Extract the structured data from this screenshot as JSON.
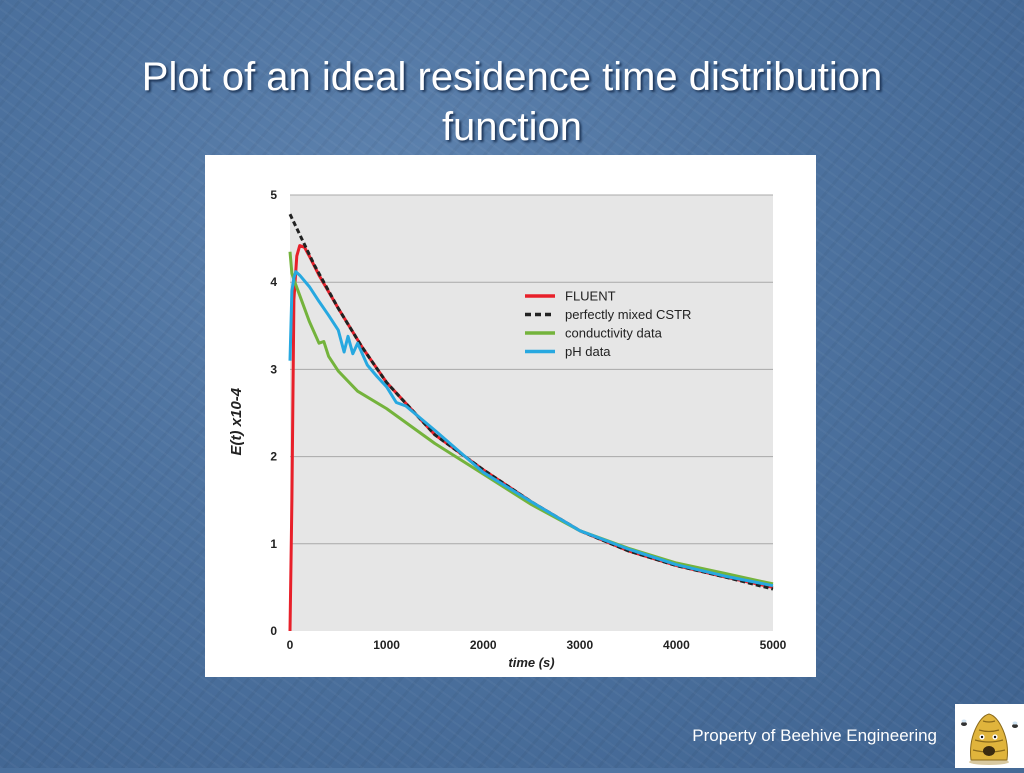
{
  "slide": {
    "title_line1": "Plot of an ideal residence time distribution",
    "title_line2": "function",
    "footer": "Property of Beehive Engineering"
  },
  "chart_data": {
    "type": "line",
    "xlabel": "time (s)",
    "ylabel": "E(t) x10-4",
    "xlim": [
      0,
      5000
    ],
    "ylim": [
      0,
      5
    ],
    "xticks": [
      0,
      1000,
      2000,
      3000,
      4000,
      5000
    ],
    "yticks": [
      0,
      1,
      2,
      3,
      4,
      5
    ],
    "grid": true,
    "legend_position": "top-right",
    "series": [
      {
        "name": "FLUENT",
        "color": "#e8202a",
        "dash": "solid",
        "x": [
          0,
          20,
          40,
          70,
          100,
          150,
          200,
          300,
          500,
          750,
          1000,
          1500,
          2000,
          2500,
          3000,
          3500,
          4000,
          4500,
          5000
        ],
        "y": [
          0,
          1.5,
          3.8,
          4.3,
          4.42,
          4.4,
          4.3,
          4.08,
          3.7,
          3.25,
          2.85,
          2.25,
          1.85,
          1.48,
          1.15,
          0.92,
          0.75,
          0.62,
          0.5
        ]
      },
      {
        "name": "perfectly mixed CSTR",
        "color": "#222222",
        "dash": "dashed",
        "x": [
          0,
          250,
          500,
          750,
          1000,
          1500,
          2000,
          2500,
          3000,
          3500,
          4000,
          4500,
          5000
        ],
        "y": [
          4.78,
          4.2,
          3.7,
          3.25,
          2.85,
          2.25,
          1.85,
          1.48,
          1.15,
          0.92,
          0.75,
          0.62,
          0.48
        ]
      },
      {
        "name": "conductivity data",
        "color": "#74b33c",
        "dash": "solid",
        "x": [
          0,
          20,
          50,
          100,
          200,
          300,
          350,
          400,
          500,
          700,
          1000,
          1500,
          2000,
          2500,
          3000,
          3500,
          4000,
          4500,
          5000
        ],
        "y": [
          4.35,
          4.1,
          4.0,
          3.85,
          3.55,
          3.3,
          3.32,
          3.15,
          2.98,
          2.75,
          2.55,
          2.15,
          1.8,
          1.45,
          1.15,
          0.95,
          0.78,
          0.66,
          0.54
        ]
      },
      {
        "name": "pH data",
        "color": "#27a8e0",
        "dash": "solid",
        "x": [
          0,
          20,
          40,
          60,
          100,
          200,
          300,
          400,
          500,
          560,
          600,
          650,
          700,
          800,
          900,
          1000,
          1100,
          1200,
          1500,
          2000,
          2500,
          3000,
          3500,
          4000,
          4500,
          5000
        ],
        "y": [
          3.1,
          3.9,
          4.05,
          4.12,
          4.08,
          3.95,
          3.78,
          3.62,
          3.45,
          3.2,
          3.38,
          3.18,
          3.3,
          3.05,
          2.92,
          2.8,
          2.62,
          2.58,
          2.3,
          1.82,
          1.48,
          1.15,
          0.94,
          0.76,
          0.63,
          0.52
        ]
      }
    ]
  }
}
